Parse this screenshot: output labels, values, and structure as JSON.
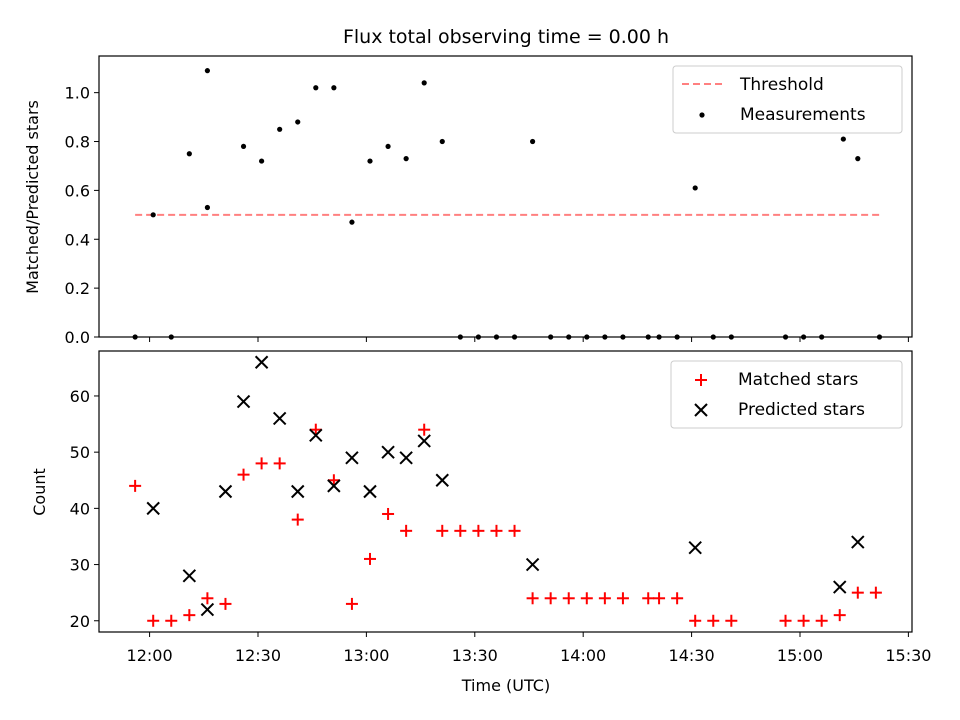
{
  "chart_data": [
    {
      "type": "scatter",
      "title": "Flux total observing time = 0.00 h",
      "xlabel": "",
      "ylabel": "Matched/Predicted stars",
      "ylim": [
        0,
        1.15
      ],
      "y_ticks": [
        "0.0",
        "0.2",
        "0.4",
        "0.6",
        "0.8",
        "1.0"
      ],
      "grid": false,
      "legend": "top-right",
      "threshold": {
        "name": "Threshold",
        "value": 0.5,
        "x_start": "11:56",
        "x_end": "15:22",
        "color": "#ff8080"
      },
      "series": [
        {
          "name": "Measurements",
          "marker": "dot",
          "color": "#000000",
          "points": [
            [
              "11:56",
              0.0
            ],
            [
              "12:01",
              0.5
            ],
            [
              "12:06",
              0.0
            ],
            [
              "12:11",
              0.75
            ],
            [
              "12:16",
              0.53
            ],
            [
              "12:16",
              1.09
            ],
            [
              "12:26",
              0.78
            ],
            [
              "12:31",
              0.72
            ],
            [
              "12:36",
              0.85
            ],
            [
              "12:41",
              0.88
            ],
            [
              "12:46",
              1.02
            ],
            [
              "12:51",
              1.02
            ],
            [
              "12:56",
              0.47
            ],
            [
              "13:01",
              0.72
            ],
            [
              "13:06",
              0.78
            ],
            [
              "13:11",
              0.73
            ],
            [
              "13:16",
              1.04
            ],
            [
              "13:21",
              0.8
            ],
            [
              "13:26",
              0.0
            ],
            [
              "13:31",
              0.0
            ],
            [
              "13:36",
              0.0
            ],
            [
              "13:41",
              0.0
            ],
            [
              "13:46",
              0.8
            ],
            [
              "13:51",
              0.0
            ],
            [
              "13:56",
              0.0
            ],
            [
              "14:01",
              0.0
            ],
            [
              "14:06",
              0.0
            ],
            [
              "14:11",
              0.0
            ],
            [
              "14:18",
              0.0
            ],
            [
              "14:21",
              0.0
            ],
            [
              "14:26",
              0.0
            ],
            [
              "14:31",
              0.61
            ],
            [
              "14:36",
              0.0
            ],
            [
              "14:41",
              0.0
            ],
            [
              "14:56",
              0.0
            ],
            [
              "15:01",
              0.0
            ],
            [
              "15:06",
              0.0
            ],
            [
              "15:12",
              0.81
            ],
            [
              "15:16",
              0.73
            ],
            [
              "15:22",
              0.0
            ]
          ]
        }
      ]
    },
    {
      "type": "scatter",
      "title": "",
      "xlabel": "Time (UTC)",
      "ylabel": "Count",
      "ylim": [
        18,
        68
      ],
      "y_ticks": [
        "20",
        "30",
        "40",
        "50",
        "60"
      ],
      "x_range": [
        "11:46",
        "15:31"
      ],
      "x_ticks": [
        "12:00",
        "12:30",
        "13:00",
        "13:30",
        "14:00",
        "14:30",
        "15:00",
        "15:30"
      ],
      "grid": false,
      "legend": "top-right",
      "series": [
        {
          "name": "Matched stars",
          "marker": "plus",
          "color": "#ff0000",
          "points": [
            [
              "11:56",
              44
            ],
            [
              "12:01",
              20
            ],
            [
              "12:06",
              20
            ],
            [
              "12:11",
              21
            ],
            [
              "12:16",
              24
            ],
            [
              "12:21",
              23
            ],
            [
              "12:26",
              46
            ],
            [
              "12:31",
              48
            ],
            [
              "12:36",
              48
            ],
            [
              "12:41",
              38
            ],
            [
              "12:46",
              54
            ],
            [
              "12:51",
              45
            ],
            [
              "12:56",
              23
            ],
            [
              "13:01",
              31
            ],
            [
              "13:06",
              39
            ],
            [
              "13:11",
              36
            ],
            [
              "13:16",
              54
            ],
            [
              "13:21",
              36
            ],
            [
              "13:26",
              36
            ],
            [
              "13:31",
              36
            ],
            [
              "13:36",
              36
            ],
            [
              "13:41",
              36
            ],
            [
              "13:46",
              24
            ],
            [
              "13:51",
              24
            ],
            [
              "13:56",
              24
            ],
            [
              "14:01",
              24
            ],
            [
              "14:06",
              24
            ],
            [
              "14:11",
              24
            ],
            [
              "14:18",
              24
            ],
            [
              "14:21",
              24
            ],
            [
              "14:26",
              24
            ],
            [
              "14:31",
              20
            ],
            [
              "14:36",
              20
            ],
            [
              "14:41",
              20
            ],
            [
              "14:56",
              20
            ],
            [
              "15:01",
              20
            ],
            [
              "15:06",
              20
            ],
            [
              "15:11",
              21
            ],
            [
              "15:16",
              25
            ],
            [
              "15:21",
              25
            ]
          ]
        },
        {
          "name": "Predicted stars",
          "marker": "x",
          "color": "#000000",
          "points": [
            [
              "12:01",
              40
            ],
            [
              "12:11",
              28
            ],
            [
              "12:16",
              22
            ],
            [
              "12:21",
              43
            ],
            [
              "12:26",
              59
            ],
            [
              "12:31",
              66
            ],
            [
              "12:36",
              56
            ],
            [
              "12:41",
              43
            ],
            [
              "12:46",
              53
            ],
            [
              "12:51",
              44
            ],
            [
              "12:56",
              49
            ],
            [
              "13:01",
              43
            ],
            [
              "13:06",
              50
            ],
            [
              "13:11",
              49
            ],
            [
              "13:16",
              52
            ],
            [
              "13:21",
              45
            ],
            [
              "13:46",
              30
            ],
            [
              "14:31",
              33
            ],
            [
              "15:11",
              26
            ],
            [
              "15:16",
              34
            ]
          ]
        }
      ]
    }
  ]
}
